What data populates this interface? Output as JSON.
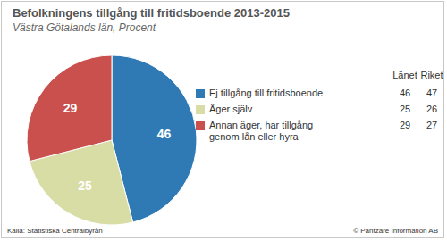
{
  "chart_data": {
    "type": "pie",
    "title": "Befolkningens tillgång till fritidsboende 2013-2015",
    "subtitle": "Västra Götalands län, Procent",
    "categories": [
      "Ej tillgång till fritidsboende",
      "Äger själv",
      "Annan äger, har tillgång genom lån eller hyra"
    ],
    "series": [
      {
        "name": "Länet",
        "values": [
          46,
          25,
          29
        ]
      },
      {
        "name": "Riket",
        "values": [
          47,
          26,
          27
        ]
      }
    ],
    "colors": [
      "#2f7ab5",
      "#d8dda6",
      "#c9504c"
    ],
    "data_labels": true,
    "source": "Källa: Statistiska Centralbyrån",
    "credit": "© Pantzare Information AB"
  }
}
